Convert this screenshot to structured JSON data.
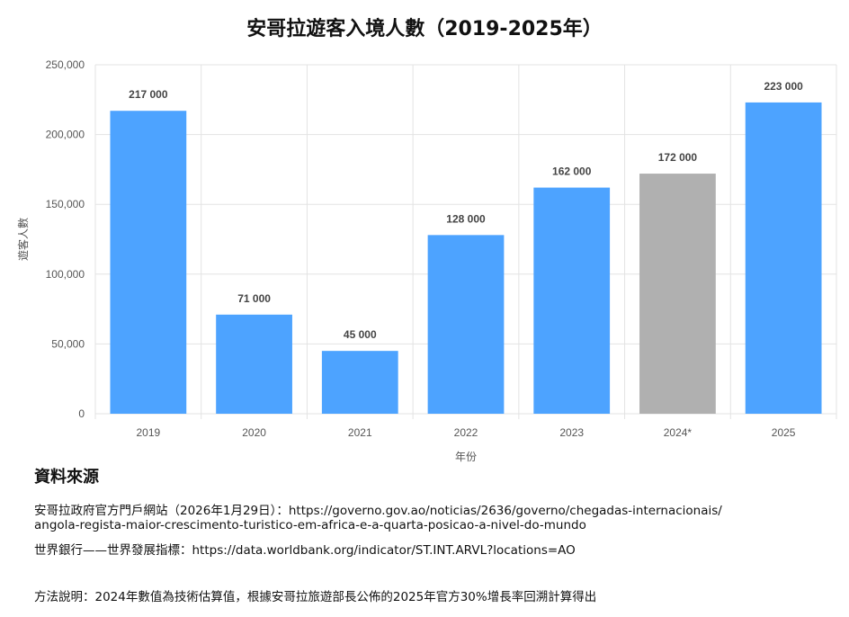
{
  "title": "安哥拉遊客入境人數（2019-2025年）",
  "chart_data": {
    "type": "bar",
    "title": "安哥拉遊客入境人數（2019-2025年）",
    "xlabel": "年份",
    "ylabel": "遊客人數",
    "ylim": [
      0,
      250000
    ],
    "yticks": [
      "0",
      "50,000",
      "100,000",
      "150,000",
      "200,000",
      "250,000"
    ],
    "ytick_values": [
      0,
      50000,
      100000,
      150000,
      200000,
      250000
    ],
    "grid": true,
    "categories": [
      "2019",
      "2020",
      "2021",
      "2022",
      "2023",
      "2024*",
      "2025"
    ],
    "values": [
      217000,
      71000,
      45000,
      128000,
      162000,
      172000,
      223000
    ],
    "data_labels": [
      "217 000",
      "71 000",
      "45 000",
      "128 000",
      "162 000",
      "172 000",
      "223 000"
    ],
    "colors": [
      "#4da3ff",
      "#4da3ff",
      "#4da3ff",
      "#4da3ff",
      "#4da3ff",
      "#b0b0b0",
      "#4da3ff"
    ]
  },
  "sources": {
    "heading": "資料來源",
    "line1a": "安哥拉政府官方門戶網站（2026年1月29日）：https://governo.gov.ao/noticias/2636/governo/chegadas-internacionais/",
    "line1b": "angola-regista-maior-crescimento-turistico-em-africa-e-a-quarta-posicao-a-nivel-do-mundo",
    "line2": "世界銀行——世界發展指標：https://data.worldbank.org/indicator/ST.INT.ARVL?locations=AO"
  },
  "note": "方法說明：2024年數值為技術估算值，根據安哥拉旅遊部長公佈的2025年官方30%增長率回溯計算得出"
}
